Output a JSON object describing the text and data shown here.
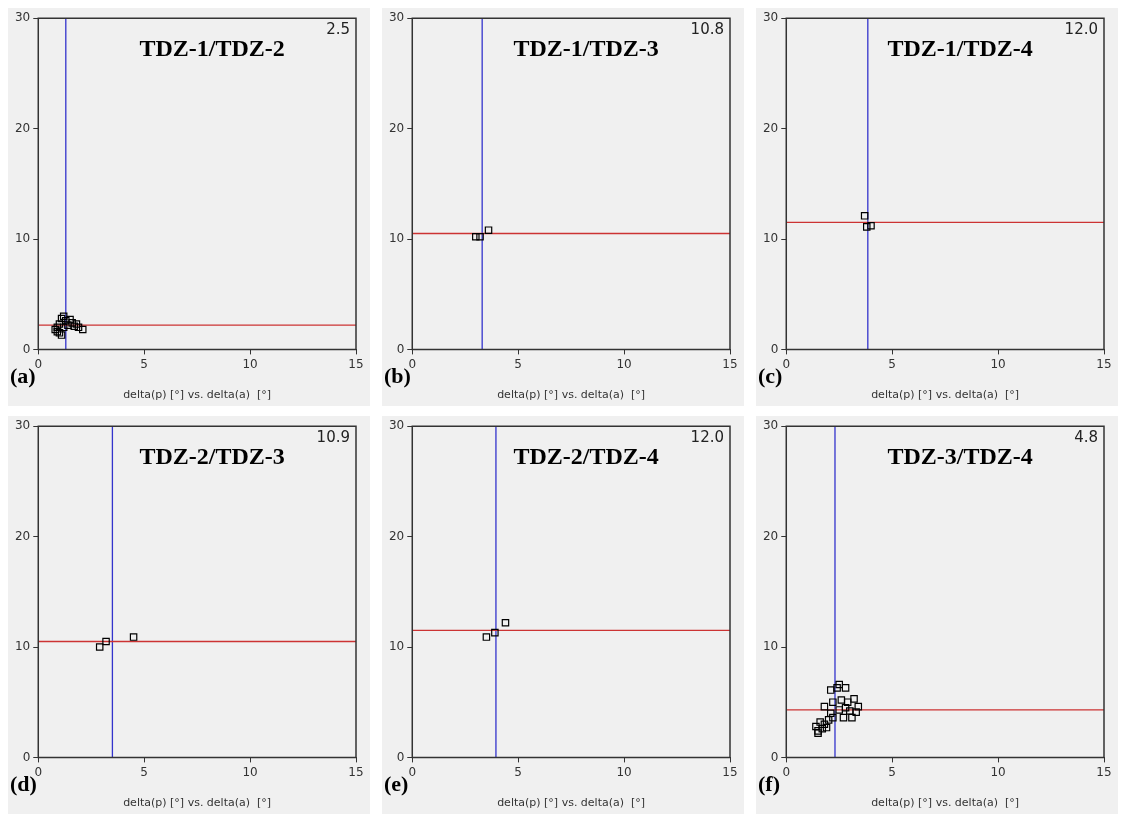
{
  "chart_data": [
    {
      "type": "scatter",
      "title": "TDZ-1/TDZ-2",
      "xlabel": "delta(p) [°] vs. delta(a)  [°]",
      "annotations": [
        "2.5",
        "(a)"
      ],
      "xlim": [
        0,
        15
      ],
      "ylim": [
        0,
        30
      ],
      "xticks": [
        0,
        5,
        10,
        15
      ],
      "yticks": [
        0,
        10,
        20,
        30
      ],
      "marker": "square",
      "color": "#000000",
      "x": [
        0.8,
        0.9,
        1.0,
        1.0,
        1.1,
        1.1,
        1.2,
        1.3,
        1.4,
        1.5,
        1.6,
        1.7,
        1.8,
        1.9,
        2.1,
        1.2,
        0.9
      ],
      "values": [
        1.8,
        2.0,
        1.5,
        2.3,
        2.8,
        1.3,
        2.0,
        2.6,
        2.2,
        2.7,
        2.4,
        2.1,
        2.3,
        2.0,
        1.8,
        3.0,
        1.6
      ],
      "ref_lines": [
        {
          "axis": "x",
          "value": 1.3,
          "color": "#3333cc"
        },
        {
          "axis": "y",
          "value": 2.2,
          "color": "#cc3333"
        }
      ]
    },
    {
      "type": "scatter",
      "title": "TDZ-1/TDZ-3",
      "xlabel": "delta(p) [°] vs. delta(a)  [°]",
      "annotations": [
        "10.8",
        "(b)"
      ],
      "xlim": [
        0,
        15
      ],
      "ylim": [
        0,
        30
      ],
      "xticks": [
        0,
        5,
        10,
        15
      ],
      "yticks": [
        0,
        10,
        20,
        30
      ],
      "marker": "square",
      "color": "#000000",
      "x": [
        3.0,
        3.2,
        3.6
      ],
      "values": [
        10.2,
        10.2,
        10.8
      ],
      "ref_lines": [
        {
          "axis": "x",
          "value": 3.3,
          "color": "#3333cc"
        },
        {
          "axis": "y",
          "value": 10.5,
          "color": "#cc3333"
        }
      ]
    },
    {
      "type": "scatter",
      "title": "TDZ-1/TDZ-4",
      "xlabel": "delta(p) [°] vs. delta(a)  [°]",
      "annotations": [
        "12.0",
        "(c)"
      ],
      "xlim": [
        0,
        15
      ],
      "ylim": [
        0,
        30
      ],
      "xticks": [
        0,
        5,
        10,
        15
      ],
      "yticks": [
        0,
        10,
        20,
        30
      ],
      "marker": "square",
      "color": "#000000",
      "x": [
        3.7,
        3.8,
        4.0
      ],
      "values": [
        12.1,
        11.1,
        11.2
      ],
      "ref_lines": [
        {
          "axis": "x",
          "value": 3.85,
          "color": "#3333cc"
        },
        {
          "axis": "y",
          "value": 11.5,
          "color": "#cc3333"
        }
      ]
    },
    {
      "type": "scatter",
      "title": "TDZ-2/TDZ-3",
      "xlabel": "delta(p) [°] vs. delta(a)  [°]",
      "annotations": [
        "10.9",
        "(d)"
      ],
      "xlim": [
        0,
        15
      ],
      "ylim": [
        0,
        30
      ],
      "xticks": [
        0,
        5,
        10,
        15
      ],
      "yticks": [
        0,
        10,
        20,
        30
      ],
      "marker": "square",
      "color": "#000000",
      "x": [
        2.9,
        3.2,
        4.5
      ],
      "values": [
        10.0,
        10.5,
        10.9
      ],
      "ref_lines": [
        {
          "axis": "x",
          "value": 3.5,
          "color": "#3333cc"
        },
        {
          "axis": "y",
          "value": 10.5,
          "color": "#cc3333"
        }
      ]
    },
    {
      "type": "scatter",
      "title": "TDZ-2/TDZ-4",
      "xlabel": "delta(p) [°] vs. delta(a)  [°]",
      "annotations": [
        "12.0",
        "(e)"
      ],
      "xlim": [
        0,
        15
      ],
      "ylim": [
        0,
        30
      ],
      "xticks": [
        0,
        5,
        10,
        15
      ],
      "yticks": [
        0,
        10,
        20,
        30
      ],
      "marker": "square",
      "color": "#000000",
      "x": [
        3.5,
        3.9,
        4.4
      ],
      "values": [
        10.9,
        11.3,
        12.2
      ],
      "ref_lines": [
        {
          "axis": "x",
          "value": 3.95,
          "color": "#3333cc"
        },
        {
          "axis": "y",
          "value": 11.5,
          "color": "#cc3333"
        }
      ]
    },
    {
      "type": "scatter",
      "title": "TDZ-3/TDZ-4",
      "xlabel": "delta(p) [°] vs. delta(a)  [°]",
      "annotations": [
        "4.8",
        "(f)"
      ],
      "xlim": [
        0,
        15
      ],
      "ylim": [
        0,
        30
      ],
      "xticks": [
        0,
        5,
        10,
        15
      ],
      "yticks": [
        0,
        10,
        20,
        30
      ],
      "marker": "square",
      "color": "#000000",
      "x": [
        1.4,
        1.5,
        1.6,
        1.5,
        1.7,
        1.8,
        1.9,
        2.0,
        2.2,
        2.1,
        1.8,
        2.2,
        2.1,
        2.4,
        2.5,
        2.8,
        2.6,
        2.9,
        3.2,
        3.4,
        3.0,
        3.1,
        2.7,
        2.5,
        2.8,
        3.3
      ],
      "values": [
        2.8,
        2.4,
        3.2,
        2.2,
        2.6,
        3.0,
        2.7,
        3.4,
        3.6,
        4.0,
        4.6,
        5.0,
        6.1,
        6.3,
        6.6,
        6.3,
        5.2,
        5.0,
        5.3,
        4.6,
        4.2,
        3.6,
        3.6,
        4.3,
        4.5,
        4.1
      ],
      "ref_lines": [
        {
          "axis": "x",
          "value": 2.3,
          "color": "#3333cc"
        },
        {
          "axis": "y",
          "value": 4.3,
          "color": "#cc3333"
        }
      ]
    }
  ]
}
